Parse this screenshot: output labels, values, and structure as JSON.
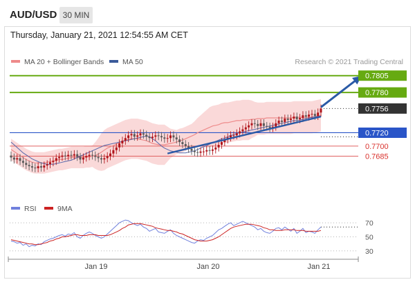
{
  "header": {
    "pair": "AUD/USD",
    "timeframe": "30 MIN",
    "timestamp": "Thursday, January 21, 2021 12:54:55 AM CET"
  },
  "legend": {
    "ma20_bb": "MA 20 + Bollinger Bands",
    "ma50": "MA 50",
    "copyright": "Research © 2021 Trading Central",
    "rsi": "RSI",
    "rsi_ma": "9MA"
  },
  "colors": {
    "up": "#b0151b",
    "down": "#5a5a5a",
    "ma20": "#ee8a8a",
    "ma50": "#5566aa",
    "bands": "#f8cccc",
    "resistance": "#66aa11",
    "pivot": "#2a55c8",
    "support": "#e06060",
    "current": "#333333",
    "arrow": "#2a5aa6",
    "rsi": "#7080dd",
    "rsi_ma": "#cc2222"
  },
  "chart_data": [
    {
      "type": "candlestick",
      "y_range": [
        0.7628,
        0.7815
      ],
      "x_ticks": [
        "Jan 19",
        "Jan 20",
        "Jan 21"
      ],
      "levels": [
        {
          "value": 0.7805,
          "label": "0.7805",
          "kind": "resistance"
        },
        {
          "value": 0.778,
          "label": "0.7780",
          "kind": "resistance"
        },
        {
          "value": 0.7756,
          "label": "0.7756",
          "kind": "current"
        },
        {
          "value": 0.772,
          "label": "0.7720",
          "kind": "pivot"
        },
        {
          "value": 0.77,
          "label": "0.7700",
          "kind": "support"
        },
        {
          "value": 0.7685,
          "label": "0.7685",
          "kind": "support"
        }
      ],
      "close": [
        0.7683,
        0.768,
        0.7682,
        0.7678,
        0.7675,
        0.7672,
        0.767,
        0.7668,
        0.7667,
        0.767,
        0.7668,
        0.7671,
        0.7673,
        0.7676,
        0.7678,
        0.7682,
        0.7684,
        0.7686,
        0.7685,
        0.7687,
        0.7686,
        0.7688,
        0.7684,
        0.768,
        0.7683,
        0.7685,
        0.7687,
        0.7686,
        0.7684,
        0.7682,
        0.768,
        0.7682,
        0.7685,
        0.7689,
        0.7694,
        0.7698,
        0.7704,
        0.7708,
        0.7712,
        0.7716,
        0.7718,
        0.7714,
        0.7716,
        0.7719,
        0.7717,
        0.7714,
        0.7712,
        0.7714,
        0.7716,
        0.7715,
        0.7713,
        0.7711,
        0.7712,
        0.7716,
        0.7713,
        0.771,
        0.7706,
        0.7703,
        0.77,
        0.7696,
        0.7693,
        0.7691,
        0.769,
        0.7692,
        0.7692,
        0.7694,
        0.7693,
        0.7695,
        0.7698,
        0.7702,
        0.7706,
        0.771,
        0.7713,
        0.7716,
        0.7716,
        0.7719,
        0.7722,
        0.7725,
        0.7728,
        0.7731,
        0.7734,
        0.7733,
        0.773,
        0.7734,
        0.773,
        0.7729,
        0.7727,
        0.7729,
        0.7734,
        0.7738,
        0.7736,
        0.7741,
        0.7739,
        0.7741,
        0.7744,
        0.774,
        0.7742,
        0.7746,
        0.7744,
        0.7747,
        0.7748,
        0.7745,
        0.775,
        0.7756
      ],
      "ma20": [
        0.7695,
        0.7692,
        0.7689,
        0.7686,
        0.7683,
        0.768,
        0.7678,
        0.7676,
        0.7675,
        0.7675,
        0.7675,
        0.7675,
        0.7676,
        0.7677,
        0.7678,
        0.7679,
        0.768,
        0.768,
        0.7681,
        0.7682,
        0.7683,
        0.7683,
        0.7683,
        0.7683,
        0.7683,
        0.7684,
        0.7684,
        0.7685,
        0.7686,
        0.7688,
        0.7691,
        0.7694,
        0.7697,
        0.7699,
        0.7701,
        0.7703,
        0.7705,
        0.7707,
        0.7709,
        0.771,
        0.7711,
        0.7711,
        0.7711,
        0.771,
        0.7709,
        0.7708,
        0.7706,
        0.7704,
        0.7703,
        0.7702,
        0.7702,
        0.7702,
        0.7703,
        0.7704,
        0.7705,
        0.7706,
        0.7708,
        0.7709,
        0.7711,
        0.7713,
        0.7715,
        0.7717,
        0.772,
        0.7722,
        0.7724,
        0.7726,
        0.7728,
        0.773,
        0.7731,
        0.7732,
        0.7734,
        0.7735,
        0.7735,
        0.7736,
        0.7737,
        0.7738,
        0.7738,
        0.7739,
        0.7739,
        0.7739,
        0.774,
        0.774,
        0.7741,
        0.7741,
        0.7741,
        0.7742,
        0.7742,
        0.7742,
        0.7742,
        0.7742,
        0.7742,
        0.7742,
        0.7742,
        0.7742,
        0.7743,
        0.7743,
        0.7743,
        0.7743,
        0.7743,
        0.7743,
        0.7743,
        0.7744,
        0.7745,
        0.7746
      ],
      "bb_width": [
        0.0016,
        0.0016,
        0.0016,
        0.0016,
        0.0016,
        0.0016,
        0.0016,
        0.0016,
        0.0016,
        0.0016,
        0.0016,
        0.0016,
        0.0016,
        0.0016,
        0.0016,
        0.0016,
        0.0016,
        0.0016,
        0.0016,
        0.0016,
        0.0016,
        0.0016,
        0.0016,
        0.0016,
        0.0016,
        0.0016,
        0.0016,
        0.0016,
        0.002,
        0.0024,
        0.0028,
        0.003,
        0.003,
        0.003,
        0.003,
        0.003,
        0.003,
        0.003,
        0.003,
        0.003,
        0.003,
        0.003,
        0.003,
        0.003,
        0.003,
        0.003,
        0.003,
        0.003,
        0.003,
        0.003,
        0.003,
        0.003,
        0.0026,
        0.0022,
        0.002,
        0.0018,
        0.0018,
        0.0018,
        0.0018,
        0.0018,
        0.0018,
        0.002,
        0.0022,
        0.0024,
        0.0026,
        0.0028,
        0.003,
        0.003,
        0.003,
        0.003,
        0.003,
        0.003,
        0.003,
        0.003,
        0.003,
        0.003,
        0.003,
        0.003,
        0.003,
        0.003,
        0.0028,
        0.0026,
        0.0024,
        0.0024,
        0.0024,
        0.0024,
        0.0024,
        0.0024,
        0.0024,
        0.0024,
        0.0024,
        0.0024,
        0.0024,
        0.0024,
        0.0024,
        0.0024,
        0.0024,
        0.0024,
        0.0024,
        0.0024,
        0.0024,
        0.0024,
        0.0024,
        0.0024
      ],
      "ma50": [
        0.7706,
        0.7702,
        0.7698,
        0.7694,
        0.769,
        0.7687,
        0.7684,
        0.7681,
        0.7679,
        0.7677,
        0.7675,
        0.7674,
        0.7673,
        0.7673,
        0.7673,
        0.7674,
        0.7675,
        0.7676,
        0.7677,
        0.7678,
        0.7679,
        0.7681,
        0.7683,
        0.7685,
        0.7687,
        0.7689,
        0.7691,
        0.7693,
        0.7695,
        0.7697,
        0.7699,
        0.7701,
        0.7702,
        0.7703,
        0.7704,
        0.7705,
        0.7706,
        0.7707,
        0.7708,
        0.7709,
        0.771,
        0.7711,
        0.7712,
        0.7713,
        0.7714,
        0.7715,
        0.7714,
        0.7711,
        0.7708,
        0.7704,
        0.77,
        0.7697,
        0.7695,
        0.7693,
        0.7692,
        0.7691,
        0.769,
        0.769,
        0.769,
        0.7691,
        0.7692,
        0.7693,
        0.7695,
        0.7697,
        0.7699,
        0.7701,
        0.7703,
        0.7705,
        0.7707,
        0.7709,
        0.7711,
        0.7712,
        0.7714,
        0.7716,
        0.7717,
        0.7719,
        0.772,
        0.7721,
        0.7722,
        0.7723,
        0.7724,
        0.7725,
        0.7726,
        0.7727,
        0.7728,
        0.7729,
        0.773,
        0.7731,
        0.7732,
        0.7733,
        0.7734,
        0.7735,
        0.7736,
        0.7737,
        0.7738,
        0.7738,
        0.7739,
        0.774,
        0.7741,
        0.7742,
        0.7743,
        0.7744,
        0.7744,
        0.7745
      ],
      "trendline": {
        "from": [
          52,
          0.7689
        ],
        "to": [
          103,
          0.7744
        ]
      },
      "arrow": {
        "from": [
          103,
          0.7758
        ],
        "to": [
          116,
          0.7803
        ]
      }
    },
    {
      "type": "line",
      "name": "RSI",
      "y_range": [
        22,
        78
      ],
      "y_ticks": [
        "70",
        "50",
        "30"
      ],
      "rsi": [
        44,
        43,
        41,
        42,
        38,
        40,
        36,
        38,
        37,
        40,
        39,
        43,
        45,
        47,
        48,
        50,
        52,
        53,
        51,
        54,
        53,
        56,
        50,
        48,
        52,
        55,
        57,
        55,
        52,
        50,
        48,
        50,
        54,
        58,
        62,
        66,
        70,
        72,
        74,
        73,
        70,
        68,
        66,
        68,
        64,
        62,
        58,
        60,
        62,
        57,
        56,
        55,
        58,
        60,
        55,
        52,
        50,
        48,
        46,
        44,
        42,
        41,
        44,
        46,
        45,
        48,
        50,
        52,
        56,
        60,
        62,
        65,
        68,
        70,
        66,
        68,
        70,
        72,
        70,
        68,
        66,
        64,
        60,
        62,
        58,
        56,
        55,
        58,
        62,
        63,
        60,
        64,
        61,
        58,
        62,
        55,
        58,
        62,
        56,
        58,
        57,
        55,
        60,
        64
      ],
      "rsi_ma": [
        46,
        45,
        44,
        43,
        42,
        41,
        40,
        40,
        39,
        39,
        40,
        41,
        42,
        44,
        45,
        47,
        48,
        50,
        50,
        51,
        52,
        53,
        53,
        52,
        52,
        52,
        53,
        53,
        53,
        52,
        52,
        52,
        52,
        53,
        55,
        57,
        59,
        62,
        64,
        67,
        68,
        69,
        69,
        69,
        68,
        67,
        66,
        65,
        63,
        62,
        61,
        60,
        59,
        59,
        58,
        57,
        55,
        54,
        52,
        50,
        48,
        46,
        45,
        44,
        44,
        44,
        45,
        46,
        48,
        50,
        53,
        56,
        59,
        62,
        64,
        65,
        66,
        67,
        68,
        68,
        68,
        67,
        66,
        65,
        63,
        62,
        60,
        60,
        59,
        59,
        59,
        60,
        60,
        60,
        60,
        59,
        59,
        59,
        58,
        58,
        58,
        58,
        58,
        59
      ]
    }
  ]
}
